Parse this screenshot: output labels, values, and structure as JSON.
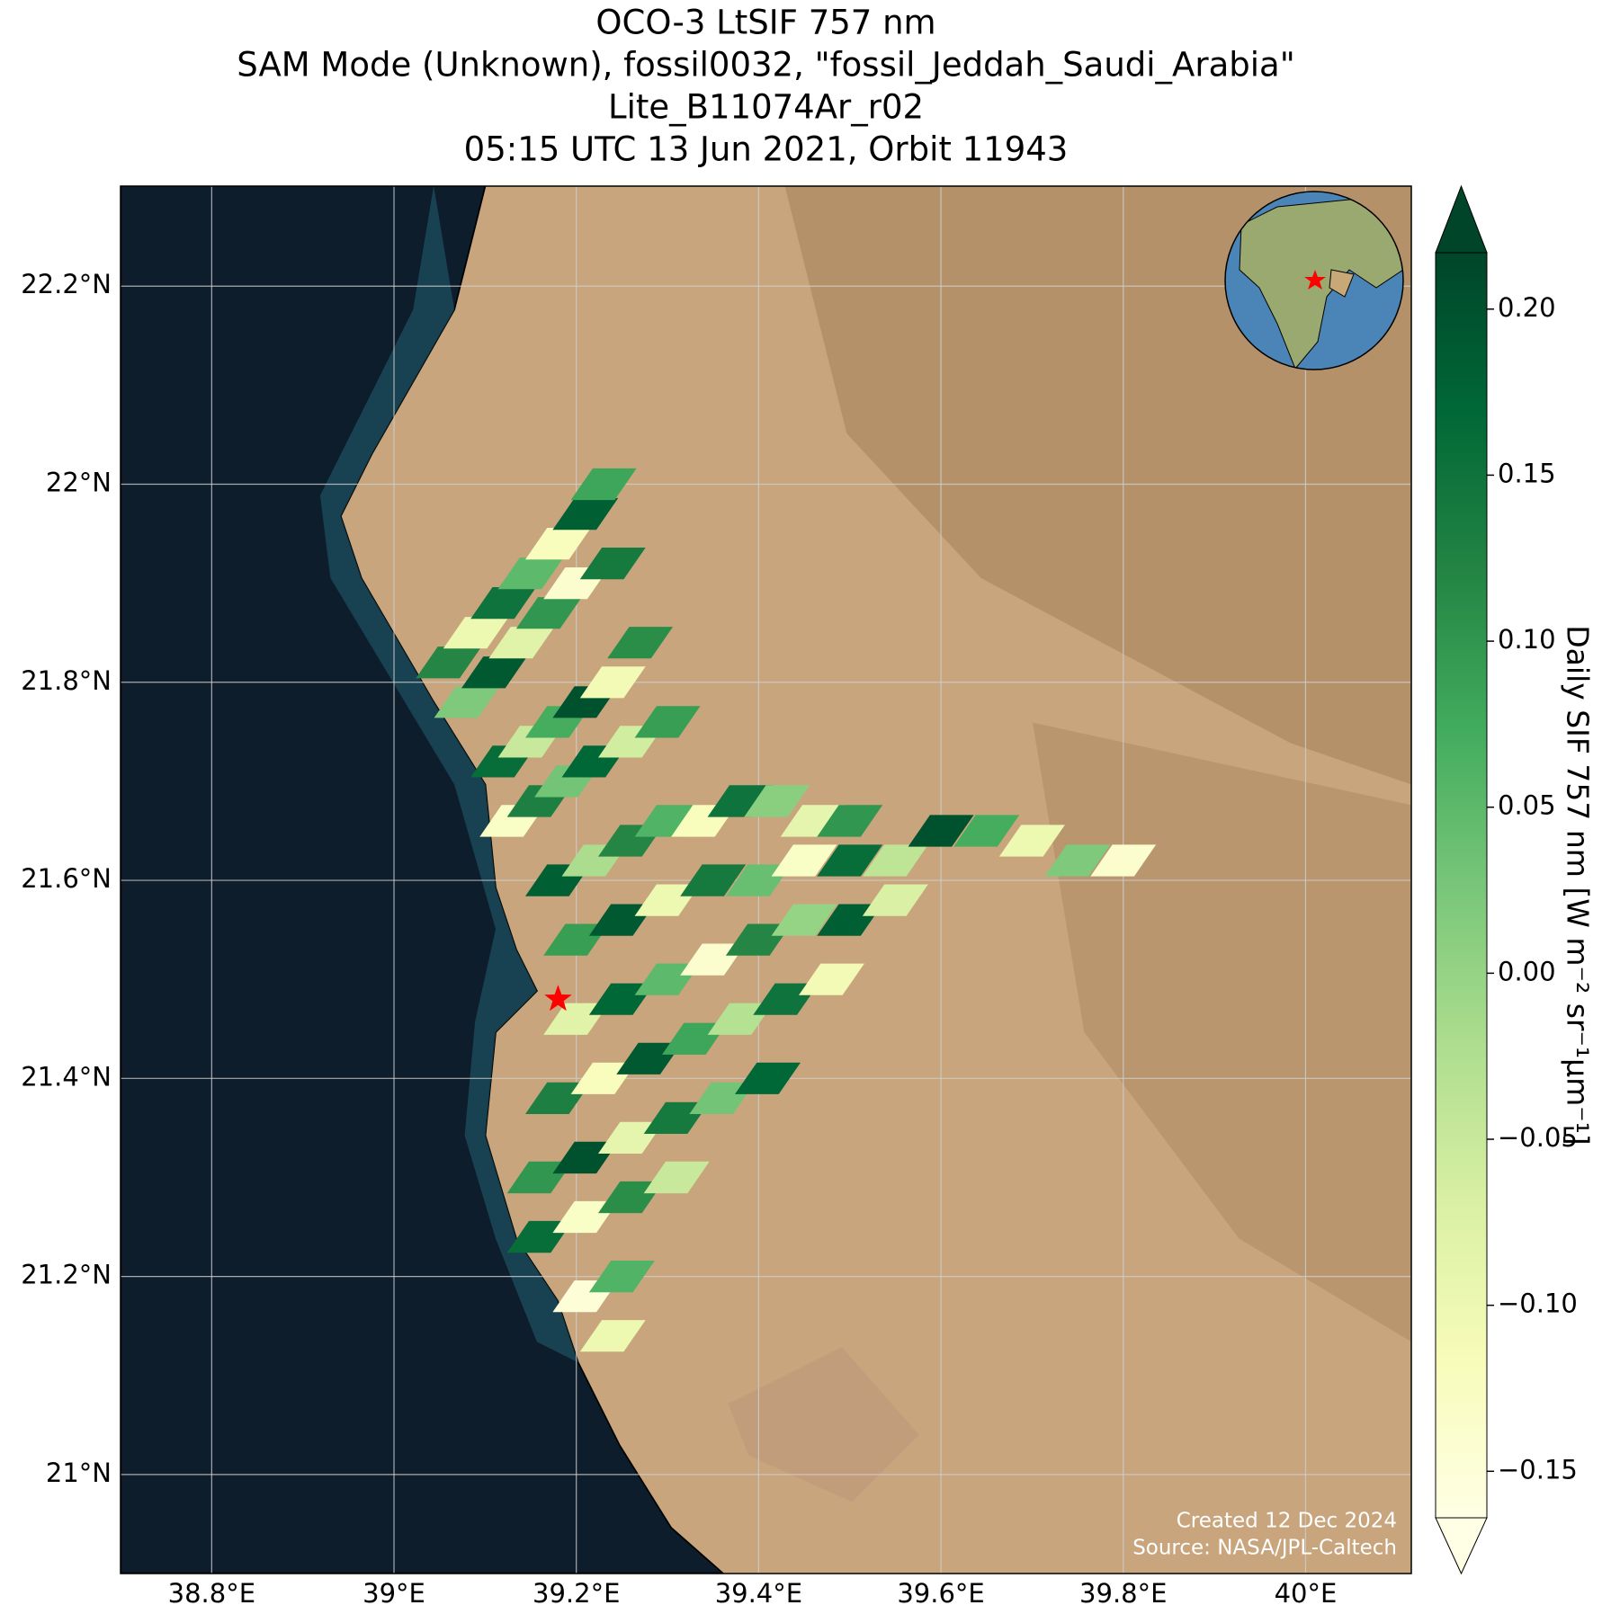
{
  "chart_data": {
    "type": "map",
    "title": [
      "OCO-3 LtSIF 757 nm",
      "SAM Mode (Unknown), fossil0032, \"fossil_Jeddah_Saudi_Arabia\"",
      "Lite_B11074Ar_r02",
      "05:15 UTC 13 Jun 2021, Orbit 11943"
    ],
    "xlim": [
      38.7,
      40.116
    ],
    "ylim": [
      20.9,
      22.301
    ],
    "xticks": [
      {
        "value": 38.8,
        "label": "38.8°E"
      },
      {
        "value": 39.0,
        "label": "39°E"
      },
      {
        "value": 39.2,
        "label": "39.2°E"
      },
      {
        "value": 39.4,
        "label": "39.4°E"
      },
      {
        "value": 39.6,
        "label": "39.6°E"
      },
      {
        "value": 39.8,
        "label": "39.8°E"
      },
      {
        "value": 40.0,
        "label": "40°E"
      }
    ],
    "yticks": [
      {
        "value": 21.0,
        "label": "21°N"
      },
      {
        "value": 21.2,
        "label": "21.2°N"
      },
      {
        "value": 21.4,
        "label": "21.4°N"
      },
      {
        "value": 21.6,
        "label": "21.6°N"
      },
      {
        "value": 21.8,
        "label": "21.8°N"
      },
      {
        "value": 22.0,
        "label": "22°N"
      },
      {
        "value": 22.2,
        "label": "22.2°N"
      }
    ],
    "grid": true,
    "colorbar": {
      "label": "Daily SIF 757 nm [W m⁻² sr⁻¹μm⁻¹]",
      "lim": [
        -0.164,
        0.217
      ],
      "ticks": [
        {
          "value": -0.15,
          "label": "−0.15"
        },
        {
          "value": -0.1,
          "label": "−0.10"
        },
        {
          "value": -0.05,
          "label": "−0.05"
        },
        {
          "value": 0.0,
          "label": "0.00"
        },
        {
          "value": 0.05,
          "label": "0.05"
        },
        {
          "value": 0.1,
          "label": "0.10"
        },
        {
          "value": 0.15,
          "label": "0.15"
        },
        {
          "value": 0.2,
          "label": "0.20"
        }
      ],
      "colormap": [
        "#ffffe5",
        "#f7fcb9",
        "#d9f0a3",
        "#addd8e",
        "#78c679",
        "#41ab5d",
        "#238443",
        "#006837",
        "#004529"
      ]
    },
    "target": [
      39.18,
      21.48
    ],
    "target_color": "#ff0000",
    "footprints": [
      [
        39.06,
        21.82,
        0.12
      ],
      [
        39.09,
        21.85,
        -0.1
      ],
      [
        39.12,
        21.88,
        0.15
      ],
      [
        39.15,
        21.91,
        0.05
      ],
      [
        39.18,
        21.94,
        -0.12
      ],
      [
        39.21,
        21.97,
        0.18
      ],
      [
        39.23,
        22.0,
        0.08
      ],
      [
        39.08,
        21.78,
        0.02
      ],
      [
        39.11,
        21.81,
        0.19
      ],
      [
        39.14,
        21.84,
        -0.08
      ],
      [
        39.17,
        21.87,
        0.1
      ],
      [
        39.2,
        21.9,
        -0.14
      ],
      [
        39.24,
        21.92,
        0.14
      ],
      [
        39.12,
        21.72,
        0.16
      ],
      [
        39.15,
        21.74,
        -0.05
      ],
      [
        39.18,
        21.76,
        0.07
      ],
      [
        39.21,
        21.78,
        0.2
      ],
      [
        39.24,
        21.8,
        -0.11
      ],
      [
        39.27,
        21.84,
        0.11
      ],
      [
        39.13,
        21.66,
        -0.13
      ],
      [
        39.16,
        21.68,
        0.13
      ],
      [
        39.19,
        21.7,
        0.03
      ],
      [
        39.22,
        21.72,
        0.17
      ],
      [
        39.26,
        21.74,
        -0.06
      ],
      [
        39.3,
        21.76,
        0.09
      ],
      [
        39.18,
        21.6,
        0.18
      ],
      [
        39.22,
        21.62,
        -0.02
      ],
      [
        39.26,
        21.64,
        0.12
      ],
      [
        39.3,
        21.66,
        0.06
      ],
      [
        39.34,
        21.66,
        -0.12
      ],
      [
        39.38,
        21.68,
        0.15
      ],
      [
        39.42,
        21.68,
        0.01
      ],
      [
        39.46,
        21.66,
        -0.09
      ],
      [
        39.5,
        21.66,
        0.1
      ],
      [
        39.2,
        21.54,
        0.09
      ],
      [
        39.25,
        21.56,
        0.19
      ],
      [
        39.3,
        21.58,
        -0.1
      ],
      [
        39.35,
        21.6,
        0.14
      ],
      [
        39.4,
        21.6,
        0.04
      ],
      [
        39.45,
        21.62,
        -0.13
      ],
      [
        39.5,
        21.62,
        0.16
      ],
      [
        39.55,
        21.62,
        -0.04
      ],
      [
        39.6,
        21.65,
        0.2
      ],
      [
        39.65,
        21.65,
        0.07
      ],
      [
        39.7,
        21.64,
        -0.1
      ],
      [
        39.75,
        21.62,
        0.02
      ],
      [
        39.8,
        21.62,
        -0.14
      ],
      [
        39.2,
        21.46,
        -0.08
      ],
      [
        39.25,
        21.48,
        0.17
      ],
      [
        39.3,
        21.5,
        0.05
      ],
      [
        39.35,
        21.52,
        -0.14
      ],
      [
        39.4,
        21.54,
        0.12
      ],
      [
        39.45,
        21.56,
        0.0
      ],
      [
        39.5,
        21.56,
        0.18
      ],
      [
        39.55,
        21.58,
        -0.07
      ],
      [
        39.18,
        21.38,
        0.13
      ],
      [
        39.23,
        21.4,
        -0.12
      ],
      [
        39.28,
        21.42,
        0.19
      ],
      [
        39.33,
        21.44,
        0.08
      ],
      [
        39.38,
        21.46,
        -0.03
      ],
      [
        39.43,
        21.48,
        0.15
      ],
      [
        39.48,
        21.5,
        -0.11
      ],
      [
        39.16,
        21.3,
        0.1
      ],
      [
        39.21,
        21.32,
        0.2
      ],
      [
        39.26,
        21.34,
        -0.09
      ],
      [
        39.31,
        21.36,
        0.14
      ],
      [
        39.36,
        21.38,
        0.03
      ],
      [
        39.41,
        21.4,
        0.17
      ],
      [
        39.16,
        21.24,
        0.16
      ],
      [
        39.21,
        21.26,
        -0.13
      ],
      [
        39.26,
        21.28,
        0.11
      ],
      [
        39.31,
        21.3,
        -0.05
      ],
      [
        39.21,
        21.18,
        -0.15
      ],
      [
        39.25,
        21.2,
        0.06
      ],
      [
        39.24,
        21.14,
        -0.1
      ]
    ],
    "annotations": [
      "Created 12 Dec 2024",
      "Source: NASA/JPL-Caltech"
    ]
  }
}
